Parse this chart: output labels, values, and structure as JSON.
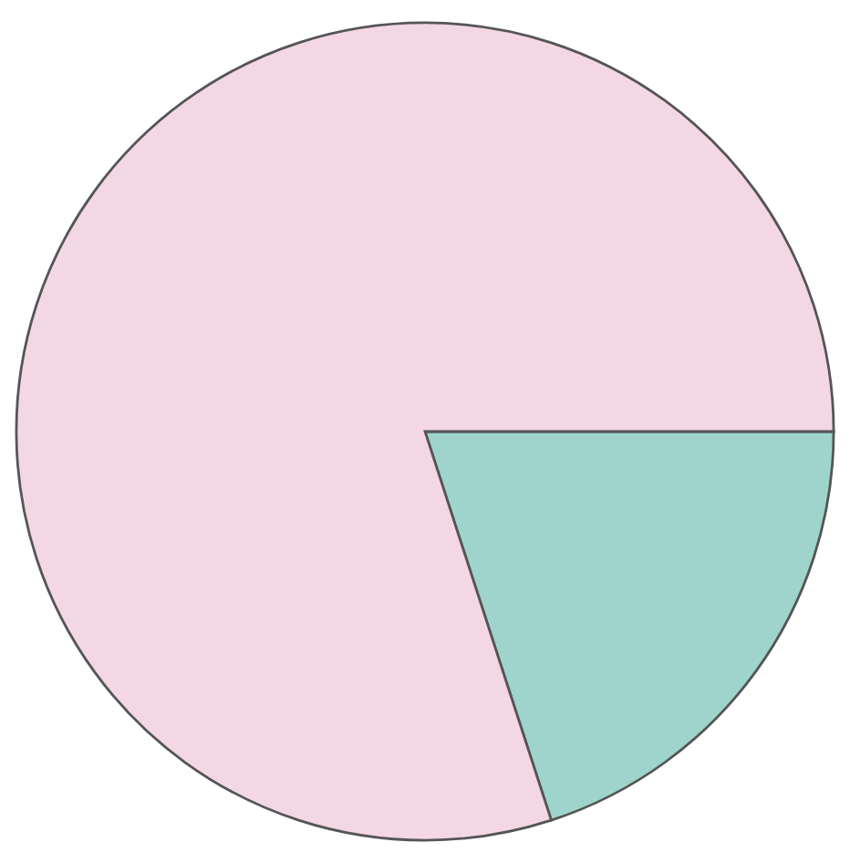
{
  "chart_data": {
    "type": "pie",
    "categories": [
      null,
      null
    ],
    "values": [
      20,
      80
    ],
    "colors": [
      "#9fd4cd",
      "#f4d7e4"
    ]
  }
}
